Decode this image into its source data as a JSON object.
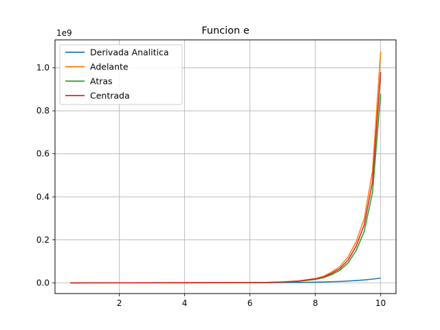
{
  "chart_data": {
    "type": "line",
    "title": "Funcion e",
    "xlabel": "",
    "ylabel": "",
    "y_offset_label": "1e9",
    "xlim": [
      0.03,
      10.47
    ],
    "ylim": [
      -0.05,
      1.13
    ],
    "xticks": [
      2,
      4,
      6,
      8,
      10
    ],
    "xtick_labels": [
      "2",
      "4",
      "6",
      "8",
      "10"
    ],
    "yticks": [
      0.0,
      0.2,
      0.4,
      0.6,
      0.8,
      1.0
    ],
    "ytick_labels": [
      "0.0",
      "0.2",
      "0.4",
      "0.6",
      "0.8",
      "1.0"
    ],
    "grid": true,
    "legend_position": "upper-left",
    "x_range": [
      0.5,
      10.0
    ],
    "series": [
      {
        "name": "Derivada Analitica",
        "color": "#1f77b4",
        "x": [
          0.5,
          6.0,
          6.5,
          7.0,
          7.5,
          8.0,
          8.25,
          8.5,
          8.75,
          9.0,
          9.25,
          9.5,
          9.75,
          10.0
        ],
        "values": [
          0.0,
          0.0004,
          0.0007,
          0.0011,
          0.0018,
          0.003,
          0.0038,
          0.0049,
          0.0063,
          0.0081,
          0.0104,
          0.0134,
          0.0172,
          0.022
        ]
      },
      {
        "name": "Adelante",
        "color": "#ff7f0e",
        "x": [
          0.5,
          6.0,
          6.5,
          7.0,
          7.5,
          8.0,
          8.25,
          8.5,
          8.75,
          9.0,
          9.25,
          9.5,
          9.75,
          10.0
        ],
        "values": [
          0.0,
          0.0008,
          0.0019,
          0.004,
          0.009,
          0.02,
          0.03,
          0.05,
          0.075,
          0.12,
          0.19,
          0.3,
          0.52,
          1.075
        ]
      },
      {
        "name": "Atras",
        "color": "#2ca02c",
        "x": [
          0.5,
          6.0,
          6.5,
          7.0,
          7.5,
          8.0,
          8.25,
          8.5,
          8.75,
          9.0,
          9.25,
          9.5,
          9.75,
          10.0
        ],
        "values": [
          0.0,
          0.0006,
          0.0015,
          0.0032,
          0.0073,
          0.016,
          0.024,
          0.038,
          0.058,
          0.092,
          0.15,
          0.24,
          0.42,
          0.88
        ]
      },
      {
        "name": "Centrada",
        "color": "#d62728",
        "x": [
          0.5,
          6.0,
          6.5,
          7.0,
          7.5,
          8.0,
          8.25,
          8.5,
          8.75,
          9.0,
          9.25,
          9.5,
          9.75,
          10.0
        ],
        "values": [
          0.0,
          0.0007,
          0.0017,
          0.0036,
          0.0081,
          0.018,
          0.027,
          0.044,
          0.066,
          0.105,
          0.17,
          0.27,
          0.47,
          0.98
        ]
      }
    ]
  }
}
